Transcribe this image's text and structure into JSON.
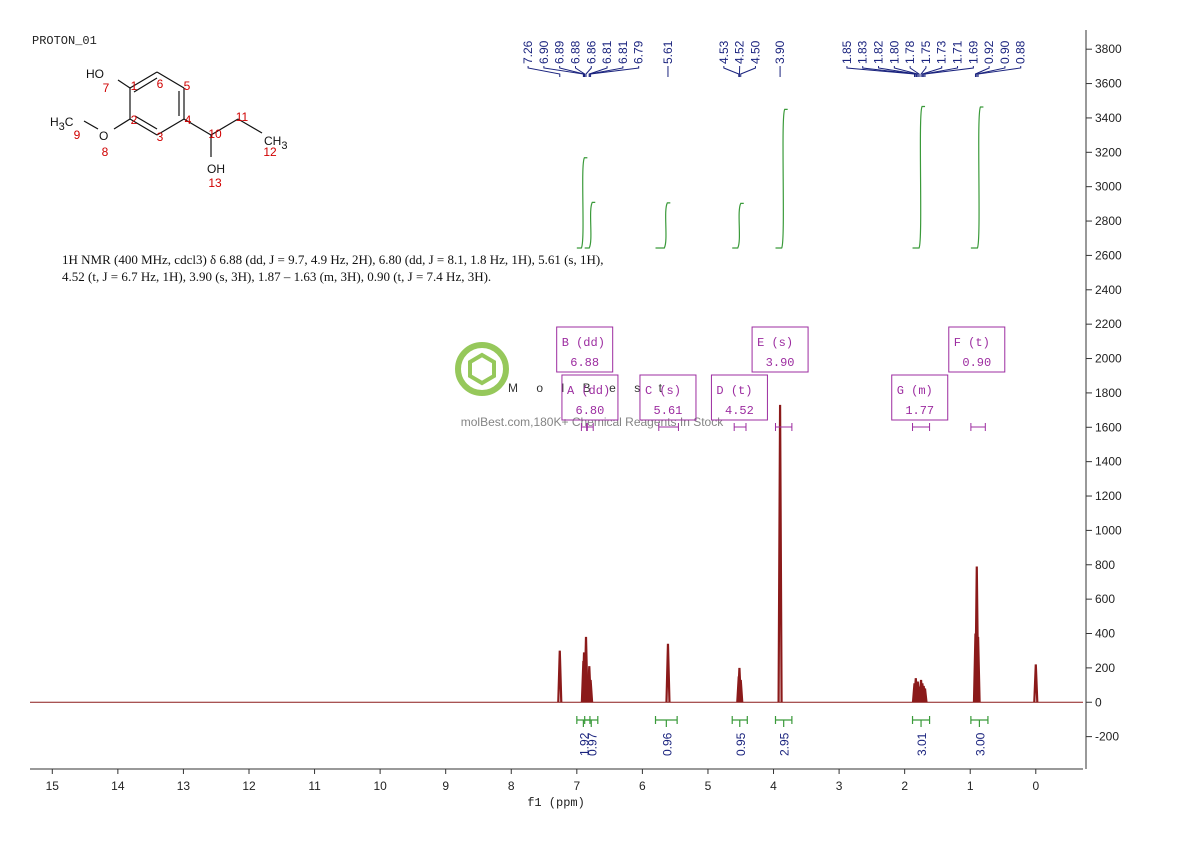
{
  "chart_data": {
    "type": "nmr",
    "title": "PROTON_01",
    "xlabel": "f1 (ppm)",
    "description": "1H NMR (400 MHz, cdcl3) δ 6.88 (dd, J = 9.7, 4.9 Hz, 2H), 6.80 (dd, J = 8.1, 1.8 Hz, 1H), 5.61 (s, 1H), 4.52 (t, J = 6.7 Hz, 1H), 3.90 (s, 3H), 1.87 – 1.63 (m, 3H), 0.90 (t, J = 7.4 Hz, 3H).",
    "xlim": [
      15.34,
      -0.72
    ],
    "ylim": [
      -400,
      3900
    ],
    "xticks": [
      15,
      14,
      13,
      12,
      11,
      10,
      9,
      8,
      7,
      6,
      5,
      4,
      3,
      2,
      1,
      0
    ],
    "yticks": [
      -200,
      0,
      200,
      400,
      600,
      800,
      1000,
      1200,
      1400,
      1600,
      1800,
      2000,
      2200,
      2400,
      2600,
      2800,
      3000,
      3200,
      3400,
      3600,
      3800
    ],
    "color": "#8b1a1a",
    "x": [
      7.26,
      6.9,
      6.89,
      6.88,
      6.86,
      6.81,
      6.79,
      5.61,
      4.53,
      4.52,
      4.5,
      3.9,
      1.85,
      1.83,
      1.82,
      1.8,
      1.78,
      1.75,
      1.73,
      1.71,
      1.69,
      0.92,
      0.9,
      0.88,
      0
    ],
    "values": [
      300,
      240,
      290,
      250,
      380,
      210,
      130,
      340,
      150,
      200,
      130,
      1730,
      110,
      140,
      100,
      120,
      90,
      130,
      110,
      95,
      80,
      400,
      790,
      380,
      220
    ],
    "peak_picks": [
      {
        "value": 7.26,
        "label": "7.26"
      },
      {
        "value": 6.9,
        "label": "6.90"
      },
      {
        "value": 6.89,
        "label": "6.89"
      },
      {
        "value": 6.88,
        "label": "6.88"
      },
      {
        "value": 6.86,
        "label": "6.86"
      },
      {
        "value": 6.81,
        "label": "6.81"
      },
      {
        "value": 6.81,
        "label": "6.81"
      },
      {
        "value": 6.79,
        "label": "6.79"
      },
      {
        "value": 5.61,
        "label": "5.61"
      },
      {
        "value": 4.53,
        "label": "4.53"
      },
      {
        "value": 4.52,
        "label": "4.52"
      },
      {
        "value": 4.5,
        "label": "4.50"
      },
      {
        "value": 3.9,
        "label": "3.90"
      },
      {
        "value": 1.85,
        "label": "1.85"
      },
      {
        "value": 1.83,
        "label": "1.83"
      },
      {
        "value": 1.82,
        "label": "1.82"
      },
      {
        "value": 1.8,
        "label": "1.80"
      },
      {
        "value": 1.78,
        "label": "1.78"
      },
      {
        "value": 1.75,
        "label": "1.75"
      },
      {
        "value": 1.73,
        "label": "1.73"
      },
      {
        "value": 1.71,
        "label": "1.71"
      },
      {
        "value": 1.69,
        "label": "1.69"
      },
      {
        "value": 0.92,
        "label": "0.92"
      },
      {
        "value": 0.9,
        "label": "0.90"
      },
      {
        "value": 0.88,
        "label": "0.88"
      }
    ],
    "integrals": [
      {
        "from": 7.0,
        "to": 6.8,
        "value": 1.92
      },
      {
        "from": 6.88,
        "to": 6.68,
        "value": 0.97
      },
      {
        "from": 5.8,
        "to": 5.47,
        "value": 0.96
      },
      {
        "from": 4.63,
        "to": 4.4,
        "value": 0.95
      },
      {
        "from": 3.97,
        "to": 3.72,
        "value": 2.95
      },
      {
        "from": 1.88,
        "to": 1.62,
        "value": 3.01
      },
      {
        "from": 0.99,
        "to": 0.73,
        "value": {
          "value": 3,
          "label": "3.00"
        }
      }
    ],
    "multiplets": [
      {
        "name": "A (dd)",
        "shift": {
          "value": 6.8,
          "label": "6.80"
        },
        "from": 6.85,
        "to": 6.75
      },
      {
        "name": "B (dd)",
        "shift": 6.88,
        "from": 6.93,
        "to": 6.84
      },
      {
        "name": "C (s)",
        "shift": 5.61,
        "from": 5.75,
        "to": 5.45
      },
      {
        "name": "D (t)",
        "shift": 4.52,
        "from": 4.6,
        "to": 4.42
      },
      {
        "name": "E (s)",
        "shift": {
          "value": 3.9,
          "label": "3.90"
        },
        "from": 3.97,
        "to": 3.72
      },
      {
        "name": "G (m)",
        "shift": 1.77,
        "from": 1.88,
        "to": 1.62
      },
      {
        "name": "F (t)",
        "shift": {
          "value": 0.9,
          "label": "0.90"
        },
        "from": 0.99,
        "to": 0.77
      }
    ]
  },
  "structure": {
    "atoms": [
      "HO",
      "H3C",
      "O",
      "OH",
      "CH3"
    ],
    "numbers": [
      "1",
      "2",
      "3",
      "4",
      "5",
      "6",
      "7",
      "8",
      "9",
      "10",
      "11",
      "12",
      "13"
    ]
  },
  "watermark": {
    "brand": "MolBest",
    "tagline": "molBest.com,180K+ Chemical Reagents In Stock"
  }
}
